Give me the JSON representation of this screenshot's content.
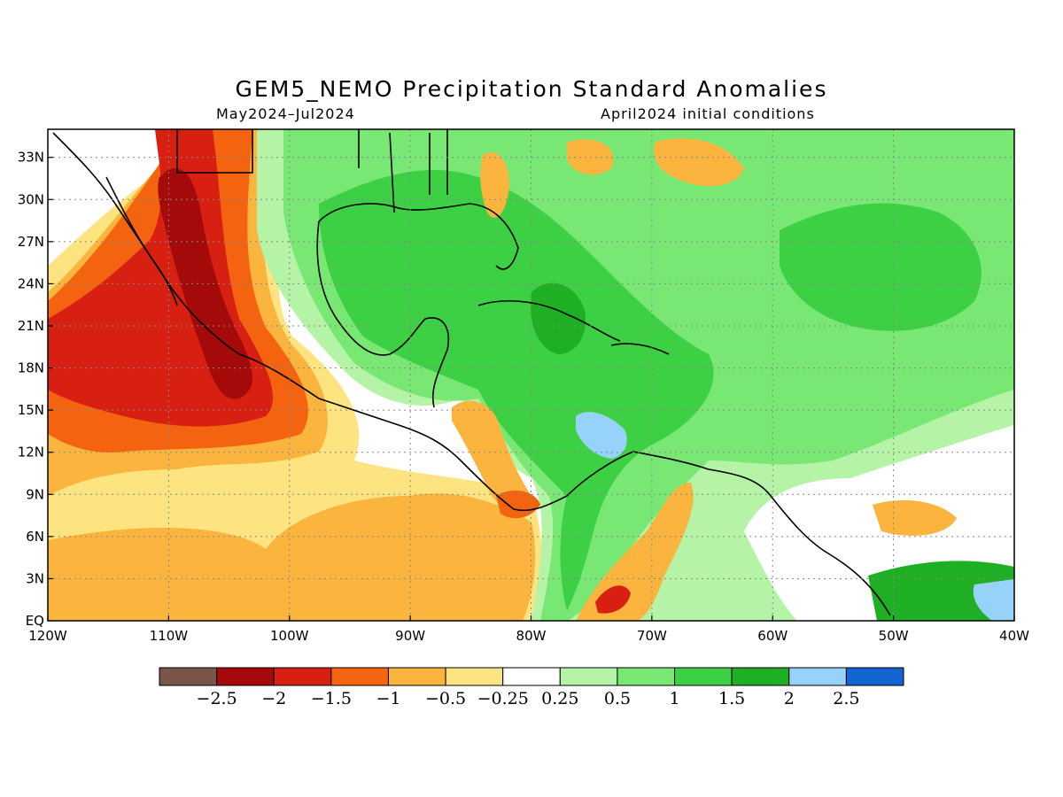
{
  "title": "GEM5_NEMO Precipitation Standard Anomalies",
  "subtitle_left": "May2024–Jul2024",
  "subtitle_right": "April2024 initial conditions",
  "map": {
    "lon_range": [
      -120,
      -40
    ],
    "lat_range": [
      0,
      35
    ],
    "x_ticks": [
      "120W",
      "110W",
      "100W",
      "90W",
      "80W",
      "70W",
      "60W",
      "50W",
      "40W"
    ],
    "y_ticks": [
      "EQ",
      "3N",
      "6N",
      "9N",
      "12N",
      "15N",
      "18N",
      "21N",
      "24N",
      "27N",
      "30N",
      "33N"
    ],
    "grid": true
  },
  "colorbar": {
    "colors": [
      "#7a5549",
      "#a50a0a",
      "#d72012",
      "#f46410",
      "#fbb43e",
      "#fee481",
      "#ffffff",
      "#b5f3a6",
      "#78e774",
      "#3dcf44",
      "#1faf24",
      "#96d2fa",
      "#1464d2"
    ],
    "labels": [
      "−2.5",
      "−2",
      "−1.5",
      "−1",
      "−0.5",
      "−0.25",
      "0.25",
      "0.5",
      "1",
      "1.5",
      "2",
      "2.5"
    ]
  }
}
